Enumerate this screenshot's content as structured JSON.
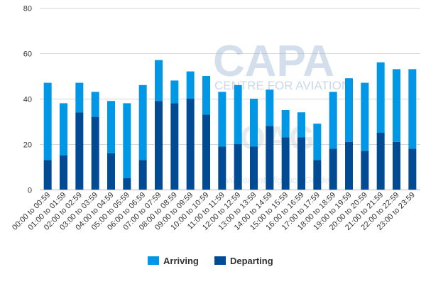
{
  "chart_data": {
    "type": "bar",
    "stacked": true,
    "categories": [
      "00:00 to 00:59",
      "01:00 to 01:59",
      "02:00 to 02:59",
      "03:00 to 03:59",
      "04:00 to 04:59",
      "05:00 to 05:59",
      "06:00 to 06:59",
      "07:00 to 07:59",
      "08:00 to 08:59",
      "09:00 to 09:59",
      "10:00 to 10:59",
      "11:00 to 11:59",
      "12:00 to 12:59",
      "13:00 to 13:59",
      "14:00 to 14:59",
      "15:00 to 15:59",
      "16:00 to 16:59",
      "17:00 to 17:59",
      "18:00 to 18:59",
      "19:00 to 19:59",
      "20:00 to 20:59",
      "21:00 to 21:59",
      "22:00 to 22:59",
      "23:00 to 23:59"
    ],
    "series": [
      {
        "name": "Departing",
        "color": "#004b93",
        "values": [
          13,
          15,
          34,
          32,
          16,
          5,
          13,
          39,
          38,
          40,
          33,
          19,
          20,
          19,
          28,
          23,
          23,
          13,
          18,
          21,
          17,
          25,
          21,
          18
        ]
      },
      {
        "name": "Arriving",
        "color": "#0097e6",
        "values": [
          34,
          23,
          13,
          11,
          23,
          33,
          33,
          18,
          10,
          12,
          17,
          24,
          26,
          21,
          16,
          12,
          11,
          16,
          25,
          28,
          30,
          31,
          32,
          35
        ]
      }
    ],
    "legend_order": [
      "Arriving",
      "Departing"
    ],
    "ylim": [
      0,
      80
    ],
    "yticks": [
      "0",
      "20",
      "40",
      "60",
      "80"
    ],
    "grid": true,
    "legend_position": "bottom"
  },
  "watermark": {
    "brand": "CAPA",
    "brand_sub": "CENTRE FOR AVIATION",
    "partner": "OAG",
    "partner_tag": "Aviation Intelligence Guide"
  }
}
